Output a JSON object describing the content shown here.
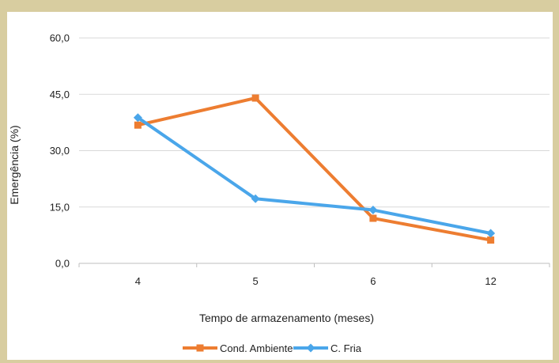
{
  "chart_data": {
    "type": "line",
    "categories": [
      "4",
      "5",
      "6",
      "12"
    ],
    "series": [
      {
        "name": "Cond. Ambiente",
        "color": "#ED7D31",
        "marker": "square",
        "values": [
          36.8,
          44.0,
          12.0,
          6.2
        ]
      },
      {
        "name": "C. Fria",
        "color": "#4AA6EA",
        "marker": "diamond",
        "values": [
          38.8,
          17.2,
          14.2,
          8.0
        ]
      }
    ],
    "y_ticks": [
      "0,0",
      "15,0",
      "30,0",
      "45,0",
      "60,0"
    ],
    "ylim": [
      0,
      60
    ],
    "xlabel": "Tempo de armazenamento (meses)",
    "ylabel": "Emergência (%)",
    "grid": "horizontal",
    "legend_position": "bottom"
  },
  "colors": {
    "frame_background": "#d8cda0",
    "plot_background": "#ffffff",
    "gridline": "#d9d9d9"
  }
}
